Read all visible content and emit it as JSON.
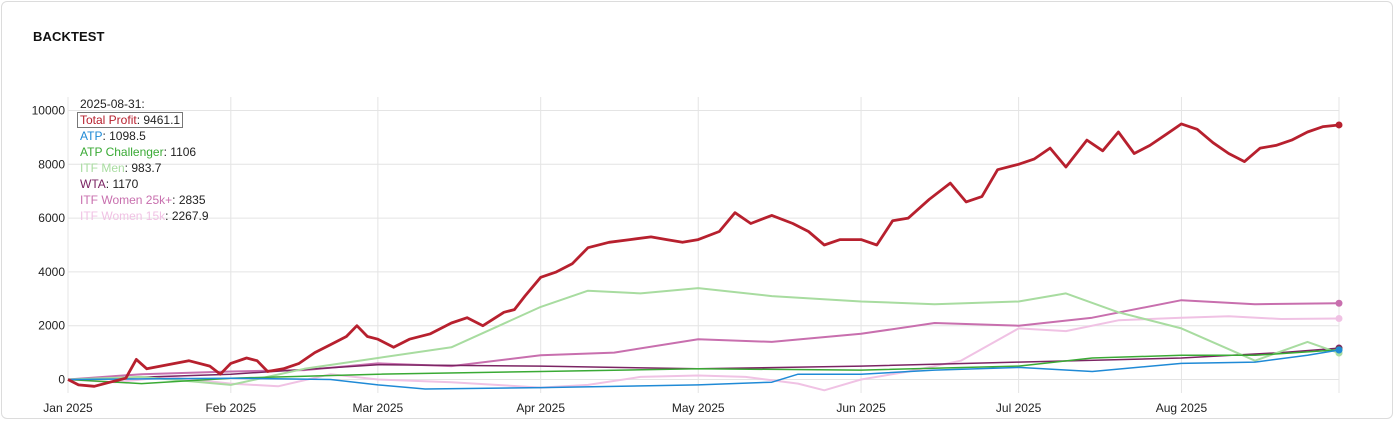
{
  "card": {
    "title": "BACKTEST"
  },
  "tooltip": {
    "date": "2025-08-31:",
    "items": [
      {
        "name": "Total Profit",
        "value": "9461.1",
        "color": "#b7202e",
        "highlight": true
      },
      {
        "name": "ATP",
        "value": "1098.5",
        "color": "#1f8ad6"
      },
      {
        "name": "ATP Challenger",
        "value": "1106",
        "color": "#3aaa35"
      },
      {
        "name": "ITF Men",
        "value": "983.7",
        "color": "#a8dca0"
      },
      {
        "name": "WTA",
        "value": "1170",
        "color": "#7b2463"
      },
      {
        "name": "ITF Women 25k+",
        "value": "2835",
        "color": "#c86fae"
      },
      {
        "name": "ITF Women 15k",
        "value": "2267.9",
        "color": "#f0c2e4"
      }
    ]
  },
  "chart_data": {
    "type": "line",
    "x_range": [
      "2025-01-01",
      "2025-08-31"
    ],
    "ylim": [
      -500,
      10500
    ],
    "y_ticks": [
      0,
      2000,
      4000,
      6000,
      8000,
      10000
    ],
    "x_ticks": [
      {
        "date": "2025-01-01",
        "label": "Jan 2025"
      },
      {
        "date": "2025-02-01",
        "label": "Feb 2025"
      },
      {
        "date": "2025-03-01",
        "label": "Mar 2025"
      },
      {
        "date": "2025-04-01",
        "label": "Apr 2025"
      },
      {
        "date": "2025-05-01",
        "label": "May 2025"
      },
      {
        "date": "2025-06-01",
        "label": "Jun 2025"
      },
      {
        "date": "2025-07-01",
        "label": "Jul 2025"
      },
      {
        "date": "2025-08-01",
        "label": "Aug 2025"
      }
    ],
    "grid": true,
    "series": [
      {
        "name": "ITF Women 15k",
        "color": "#f0c2e4",
        "width": 2,
        "points": [
          [
            "2025-01-01",
            0
          ],
          [
            "2025-01-10",
            -100
          ],
          [
            "2025-01-20",
            100
          ],
          [
            "2025-02-01",
            -150
          ],
          [
            "2025-02-10",
            -250
          ],
          [
            "2025-02-20",
            200
          ],
          [
            "2025-03-01",
            0
          ],
          [
            "2025-03-15",
            -100
          ],
          [
            "2025-04-01",
            -300
          ],
          [
            "2025-04-10",
            -200
          ],
          [
            "2025-04-20",
            100
          ],
          [
            "2025-05-01",
            150
          ],
          [
            "2025-05-10",
            100
          ],
          [
            "2025-05-20",
            -150
          ],
          [
            "2025-05-25",
            -400
          ],
          [
            "2025-06-01",
            0
          ],
          [
            "2025-06-10",
            300
          ],
          [
            "2025-06-20",
            700
          ],
          [
            "2025-07-01",
            1900
          ],
          [
            "2025-07-10",
            1800
          ],
          [
            "2025-07-20",
            2200
          ],
          [
            "2025-08-01",
            2300
          ],
          [
            "2025-08-10",
            2350
          ],
          [
            "2025-08-20",
            2250
          ],
          [
            "2025-08-31",
            2268
          ]
        ]
      },
      {
        "name": "ITF Women 25k+",
        "color": "#c86fae",
        "width": 2,
        "points": [
          [
            "2025-01-01",
            0
          ],
          [
            "2025-01-15",
            200
          ],
          [
            "2025-02-01",
            300
          ],
          [
            "2025-02-15",
            350
          ],
          [
            "2025-03-01",
            600
          ],
          [
            "2025-03-15",
            500
          ],
          [
            "2025-04-01",
            900
          ],
          [
            "2025-04-15",
            1000
          ],
          [
            "2025-05-01",
            1500
          ],
          [
            "2025-05-15",
            1400
          ],
          [
            "2025-06-01",
            1700
          ],
          [
            "2025-06-15",
            2100
          ],
          [
            "2025-07-01",
            2000
          ],
          [
            "2025-07-15",
            2300
          ],
          [
            "2025-08-01",
            2950
          ],
          [
            "2025-08-15",
            2800
          ],
          [
            "2025-08-31",
            2835
          ]
        ]
      },
      {
        "name": "WTA",
        "color": "#7b2463",
        "width": 1.5,
        "points": [
          [
            "2025-01-01",
            0
          ],
          [
            "2025-02-01",
            200
          ],
          [
            "2025-03-01",
            550
          ],
          [
            "2025-04-01",
            500
          ],
          [
            "2025-05-01",
            400
          ],
          [
            "2025-06-01",
            500
          ],
          [
            "2025-07-01",
            650
          ],
          [
            "2025-08-01",
            800
          ],
          [
            "2025-08-20",
            1000
          ],
          [
            "2025-08-31",
            1170
          ]
        ]
      },
      {
        "name": "ITF Men",
        "color": "#a8dca0",
        "width": 2,
        "points": [
          [
            "2025-01-01",
            0
          ],
          [
            "2025-01-15",
            100
          ],
          [
            "2025-02-01",
            -200
          ],
          [
            "2025-02-15",
            400
          ],
          [
            "2025-03-01",
            800
          ],
          [
            "2025-03-15",
            1200
          ],
          [
            "2025-04-01",
            2700
          ],
          [
            "2025-04-10",
            3300
          ],
          [
            "2025-04-20",
            3200
          ],
          [
            "2025-05-01",
            3400
          ],
          [
            "2025-05-15",
            3100
          ],
          [
            "2025-06-01",
            2900
          ],
          [
            "2025-06-15",
            2800
          ],
          [
            "2025-07-01",
            2900
          ],
          [
            "2025-07-10",
            3200
          ],
          [
            "2025-07-20",
            2500
          ],
          [
            "2025-08-01",
            1900
          ],
          [
            "2025-08-15",
            700
          ],
          [
            "2025-08-25",
            1400
          ],
          [
            "2025-08-31",
            984
          ]
        ]
      },
      {
        "name": "ATP Challenger",
        "color": "#3aaa35",
        "width": 1.5,
        "points": [
          [
            "2025-01-01",
            0
          ],
          [
            "2025-01-15",
            -150
          ],
          [
            "2025-02-01",
            50
          ],
          [
            "2025-03-01",
            200
          ],
          [
            "2025-04-01",
            300
          ],
          [
            "2025-05-01",
            400
          ],
          [
            "2025-06-01",
            350
          ],
          [
            "2025-07-01",
            500
          ],
          [
            "2025-07-15",
            800
          ],
          [
            "2025-08-01",
            900
          ],
          [
            "2025-08-15",
            900
          ],
          [
            "2025-08-31",
            1106
          ]
        ]
      },
      {
        "name": "ATP",
        "color": "#1f8ad6",
        "width": 1.5,
        "points": [
          [
            "2025-01-01",
            0
          ],
          [
            "2025-02-01",
            50
          ],
          [
            "2025-02-20",
            0
          ],
          [
            "2025-03-01",
            -200
          ],
          [
            "2025-03-10",
            -350
          ],
          [
            "2025-04-01",
            -300
          ],
          [
            "2025-05-01",
            -200
          ],
          [
            "2025-05-15",
            -100
          ],
          [
            "2025-05-20",
            200
          ],
          [
            "2025-06-01",
            200
          ],
          [
            "2025-06-15",
            350
          ],
          [
            "2025-07-01",
            450
          ],
          [
            "2025-07-15",
            300
          ],
          [
            "2025-08-01",
            600
          ],
          [
            "2025-08-15",
            650
          ],
          [
            "2025-08-25",
            900
          ],
          [
            "2025-08-31",
            1098.5
          ]
        ]
      },
      {
        "name": "Total Profit",
        "color": "#b7202e",
        "width": 2.8,
        "points": [
          [
            "2025-01-01",
            0
          ],
          [
            "2025-01-03",
            -200
          ],
          [
            "2025-01-06",
            -250
          ],
          [
            "2025-01-09",
            -100
          ],
          [
            "2025-01-12",
            50
          ],
          [
            "2025-01-14",
            750
          ],
          [
            "2025-01-16",
            400
          ],
          [
            "2025-01-20",
            550
          ],
          [
            "2025-01-24",
            700
          ],
          [
            "2025-01-28",
            500
          ],
          [
            "2025-01-30",
            200
          ],
          [
            "2025-02-01",
            600
          ],
          [
            "2025-02-04",
            800
          ],
          [
            "2025-02-06",
            700
          ],
          [
            "2025-02-08",
            300
          ],
          [
            "2025-02-11",
            400
          ],
          [
            "2025-02-14",
            600
          ],
          [
            "2025-02-17",
            1000
          ],
          [
            "2025-02-20",
            1300
          ],
          [
            "2025-02-23",
            1600
          ],
          [
            "2025-02-25",
            2000
          ],
          [
            "2025-02-27",
            1600
          ],
          [
            "2025-03-01",
            1500
          ],
          [
            "2025-03-04",
            1200
          ],
          [
            "2025-03-07",
            1500
          ],
          [
            "2025-03-11",
            1700
          ],
          [
            "2025-03-15",
            2100
          ],
          [
            "2025-03-18",
            2300
          ],
          [
            "2025-03-21",
            2000
          ],
          [
            "2025-03-25",
            2500
          ],
          [
            "2025-03-27",
            2600
          ],
          [
            "2025-03-29",
            3100
          ],
          [
            "2025-04-01",
            3800
          ],
          [
            "2025-04-04",
            4000
          ],
          [
            "2025-04-07",
            4300
          ],
          [
            "2025-04-10",
            4900
          ],
          [
            "2025-04-14",
            5100
          ],
          [
            "2025-04-18",
            5200
          ],
          [
            "2025-04-22",
            5300
          ],
          [
            "2025-04-25",
            5200
          ],
          [
            "2025-04-28",
            5100
          ],
          [
            "2025-05-01",
            5200
          ],
          [
            "2025-05-05",
            5500
          ],
          [
            "2025-05-08",
            6200
          ],
          [
            "2025-05-11",
            5800
          ],
          [
            "2025-05-15",
            6100
          ],
          [
            "2025-05-19",
            5800
          ],
          [
            "2025-05-22",
            5500
          ],
          [
            "2025-05-25",
            5000
          ],
          [
            "2025-05-28",
            5200
          ],
          [
            "2025-06-01",
            5200
          ],
          [
            "2025-06-04",
            5000
          ],
          [
            "2025-06-07",
            5900
          ],
          [
            "2025-06-10",
            6000
          ],
          [
            "2025-06-14",
            6700
          ],
          [
            "2025-06-18",
            7300
          ],
          [
            "2025-06-21",
            6600
          ],
          [
            "2025-06-24",
            6800
          ],
          [
            "2025-06-27",
            7800
          ],
          [
            "2025-07-01",
            8000
          ],
          [
            "2025-07-04",
            8200
          ],
          [
            "2025-07-07",
            8600
          ],
          [
            "2025-07-10",
            7900
          ],
          [
            "2025-07-14",
            8900
          ],
          [
            "2025-07-17",
            8500
          ],
          [
            "2025-07-20",
            9200
          ],
          [
            "2025-07-23",
            8400
          ],
          [
            "2025-07-26",
            8700
          ],
          [
            "2025-07-29",
            9100
          ],
          [
            "2025-08-01",
            9500
          ],
          [
            "2025-08-04",
            9300
          ],
          [
            "2025-08-07",
            8800
          ],
          [
            "2025-08-10",
            8400
          ],
          [
            "2025-08-13",
            8100
          ],
          [
            "2025-08-16",
            8600
          ],
          [
            "2025-08-19",
            8700
          ],
          [
            "2025-08-22",
            8900
          ],
          [
            "2025-08-25",
            9200
          ],
          [
            "2025-08-28",
            9400
          ],
          [
            "2025-08-31",
            9461.1
          ]
        ]
      }
    ]
  }
}
